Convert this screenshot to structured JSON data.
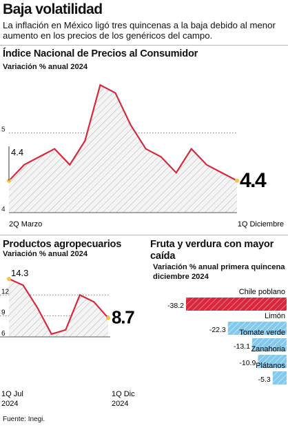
{
  "header": {
    "title": "Baja volatilidad",
    "intro": "La inflación en México ligó tres quincenas a la baja debido al menor aumento en los precios de los genéricos del campo."
  },
  "colors": {
    "line": "#d6293a",
    "marker": "#f5c542",
    "hatch": "#b5b5b5",
    "bar_red": "#d9283d",
    "bar_blue": "#7fc6ea"
  },
  "charts": {
    "inpc": {
      "title": "Índice Nacional de Precios al Consumidor",
      "subtitle": "Variación % anual 2024"
    },
    "agro": {
      "title": "Productos agropecuarios",
      "subtitle": "Variación % anual 2024"
    },
    "fruta": {
      "title_line1": "Fruta y verdura con mayor",
      "title_line2": "caída",
      "subtitle_line1": "Variación % anual  primera quincena",
      "subtitle_line2": "diciembre 2024"
    }
  },
  "chart_data": [
    {
      "type": "area",
      "title": "Índice Nacional de Precios al Consumidor",
      "subtitle": "Variación % anual 2024",
      "x_start_label": "2Q Marzo",
      "x_end_label": "1Q Diciembre",
      "values": [
        4.4,
        4.6,
        4.7,
        4.8,
        4.6,
        4.9,
        5.6,
        5.5,
        5.1,
        4.8,
        4.7,
        4.5,
        4.8,
        4.6,
        4.5,
        4.4
      ],
      "ylim": [
        4,
        5.8
      ],
      "yticks": [
        4,
        5
      ],
      "start_value_label": "4.4",
      "end_value_label": "4.4"
    },
    {
      "type": "area",
      "title": "Productos agropecuarios",
      "subtitle": "Variación % anual 2024",
      "x_start_label_line1": "1Q Jul",
      "x_start_label_line2": "2024",
      "x_end_label_line1": "1Q Dic",
      "x_end_label_line2": "2024",
      "values": [
        14.3,
        13.4,
        10.2,
        6.4,
        7.0,
        12.0,
        11.0,
        8.7
      ],
      "ylim": [
        6,
        14.5
      ],
      "yticks": [
        6,
        9,
        12
      ],
      "start_value_label": "14.3",
      "end_value_label": "8.7"
    },
    {
      "type": "bar",
      "orientation": "horizontal",
      "title": "Fruta y verdura con mayor caída",
      "subtitle": "Variación % anual  primera quincena diciembre 2024",
      "categories": [
        "Chile poblano",
        "Limón",
        "Tomate verde",
        "Zanahoria",
        "Plátanos"
      ],
      "values": [
        -38.2,
        -22.3,
        -13.1,
        -10.9,
        -5.3
      ],
      "value_labels": [
        "-38.2",
        "-22.3",
        "-13.1",
        "-10.9",
        "-5.3"
      ]
    }
  ],
  "footer": {
    "source": "Fuente: Inegi."
  }
}
